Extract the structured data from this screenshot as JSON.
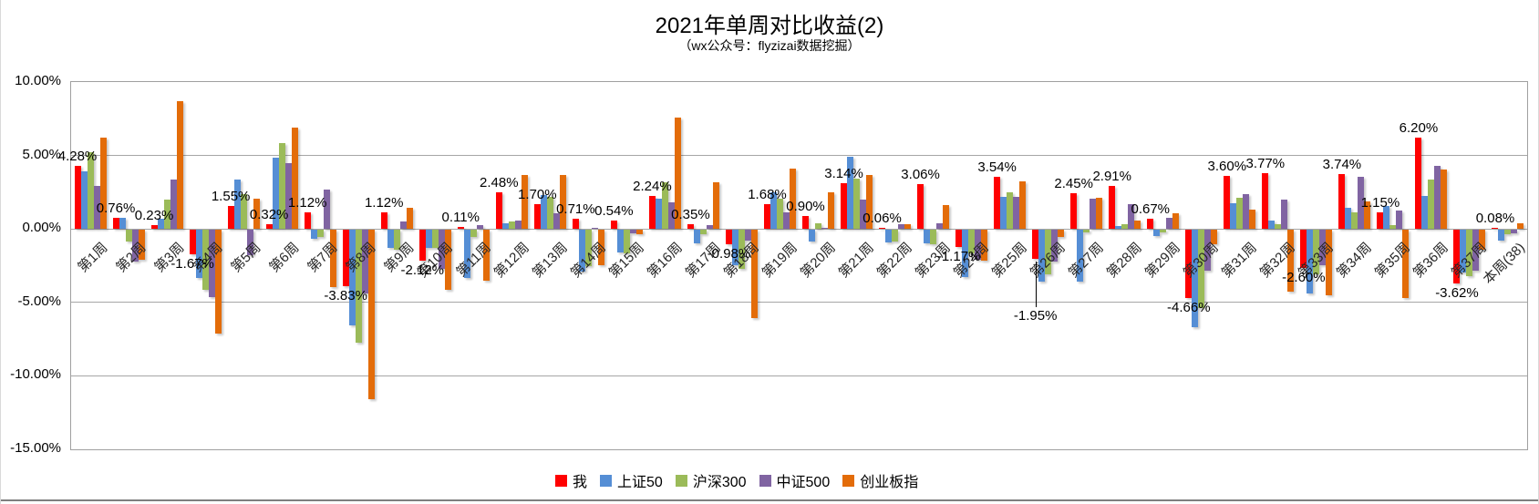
{
  "title": "2021年单周对比收益(2)",
  "subtitle": "（wx公众号：flyzizai数据挖掘）",
  "y_axis": {
    "ticks": [
      "10.00%",
      "5.00%",
      "0.00%",
      "-5.00%",
      "-10.00%",
      "-15.00%"
    ],
    "max": 10,
    "min": -15,
    "step": 5
  },
  "chart_data": {
    "type": "bar",
    "title": "2021年单周对比收益(2)",
    "subtitle": "（wx公众号：flyzizai数据挖掘）",
    "ylim": [
      -15,
      10
    ],
    "grid": true,
    "legend_position": "bottom",
    "categories": [
      "第1周",
      "第2周",
      "第3周",
      "第4周",
      "第5周",
      "第6周",
      "第7周",
      "第8周",
      "第9周",
      "第10周",
      "第11周",
      "第12周",
      "第13周",
      "第14周",
      "第15周",
      "第16周",
      "第17周",
      "第18周",
      "第19周",
      "第20周",
      "第21周",
      "第22周",
      "第23周",
      "第24周",
      "第25周",
      "第26周",
      "第27周",
      "第28周",
      "第29周",
      "第30周",
      "第31周",
      "第32周",
      "第33周",
      "第34周",
      "第35周",
      "第36周",
      "第37周",
      "本周(38)"
    ],
    "series": [
      {
        "name": "我",
        "color": "#FF0000",
        "values": [
          4.28,
          0.76,
          0.23,
          -1.67,
          1.55,
          0.32,
          1.12,
          -3.83,
          1.12,
          -2.12,
          0.11,
          2.48,
          1.7,
          0.71,
          0.54,
          2.24,
          0.35,
          -0.98,
          1.68,
          0.9,
          3.14,
          0.06,
          3.06,
          -1.17,
          3.54,
          -1.95,
          2.45,
          2.91,
          0.67,
          -4.66,
          3.6,
          3.77,
          -2.6,
          3.74,
          1.15,
          6.2,
          -3.62,
          0.08
        ]
      },
      {
        "name": "上证50",
        "color": "#558ED5",
        "values": [
          3.95,
          0.77,
          0.7,
          -3.25,
          3.37,
          4.85,
          -0.6,
          -6.5,
          -1.2,
          -1.2,
          -3.3,
          0.4,
          2.3,
          -2.85,
          -1.55,
          2.05,
          -0.9,
          -2.4,
          2.5,
          -0.77,
          4.9,
          -0.85,
          -0.9,
          -3.2,
          2.2,
          -3.55,
          -3.5,
          0.2,
          -0.45,
          -6.65,
          1.75,
          0.55,
          -4.3,
          1.45,
          1.55,
          2.25,
          -2.9,
          -0.75
        ]
      },
      {
        "name": "沪深300",
        "color": "#9BBB59",
        "values": [
          5.2,
          -0.8,
          1.98,
          -4.1,
          2.38,
          5.85,
          -0.5,
          -7.7,
          -1.35,
          -1.25,
          -0.5,
          0.5,
          2.2,
          -2.5,
          -1.6,
          3.2,
          -0.3,
          -2.65,
          2.05,
          0.36,
          3.45,
          -0.78,
          -1.0,
          -1.62,
          2.5,
          -3.0,
          -0.2,
          0.3,
          -0.2,
          -5.3,
          2.1,
          0.35,
          -3.0,
          1.15,
          0.25,
          3.35,
          -3.15,
          -0.3
        ]
      },
      {
        "name": "中证500",
        "color": "#8064A2",
        "values": [
          2.93,
          -2.19,
          3.34,
          -4.55,
          -1.72,
          4.5,
          2.65,
          -4.35,
          0.5,
          -2.65,
          0.25,
          0.6,
          1.05,
          0.1,
          -0.25,
          1.8,
          0.25,
          -0.75,
          1.1,
          0.03,
          2.0,
          0.3,
          0.38,
          -2.05,
          2.2,
          -2.15,
          2.05,
          1.7,
          0.75,
          -2.8,
          2.35,
          2.0,
          -2.4,
          3.55,
          1.25,
          4.3,
          -2.8,
          -0.25
        ]
      },
      {
        "name": "创业板指",
        "color": "#E36C09",
        "values": [
          6.22,
          -2.06,
          8.7,
          -7.08,
          2.05,
          6.88,
          -3.9,
          -11.55,
          1.45,
          -4.1,
          -3.45,
          3.7,
          3.67,
          -2.4,
          -0.3,
          7.55,
          3.2,
          -6.0,
          4.1,
          2.5,
          3.67,
          0.3,
          1.6,
          -2.1,
          3.25,
          -0.5,
          2.1,
          0.6,
          1.05,
          -0.95,
          1.3,
          -4.2,
          -4.45,
          1.9,
          -4.65,
          4.05,
          -1.35,
          0.4
        ]
      }
    ],
    "data_labels": {
      "series": "我",
      "values": [
        "4.28%",
        "0.76%",
        "0.23%",
        "-1.67%",
        "1.55%",
        "0.32%",
        "1.12%",
        "-3.83%",
        "1.12%",
        "-2.12%",
        "0.11%",
        "2.48%",
        "1.70%",
        "0.71%",
        "0.54%",
        "2.24%",
        "0.35%",
        "-0.98%",
        "1.68%",
        "0.90%",
        "3.14%",
        "0.06%",
        "3.06%",
        "-1.17%",
        "3.54%",
        "-1.95%",
        "2.45%",
        "2.91%",
        "0.67%",
        "-4.66%",
        "3.60%",
        "3.77%",
        "-2.60%",
        "3.74%",
        "1.15%",
        "6.20%",
        "-3.62%",
        "0.08%"
      ],
      "callout_weeks": [
        26
      ]
    },
    "legend": [
      {
        "label": "我",
        "color": "#FF0000"
      },
      {
        "label": "上证50",
        "color": "#558ED5"
      },
      {
        "label": "沪深300",
        "color": "#9BBB59"
      },
      {
        "label": "中证500",
        "color": "#8064A2"
      },
      {
        "label": "创业板指",
        "color": "#E36C09"
      }
    ]
  }
}
